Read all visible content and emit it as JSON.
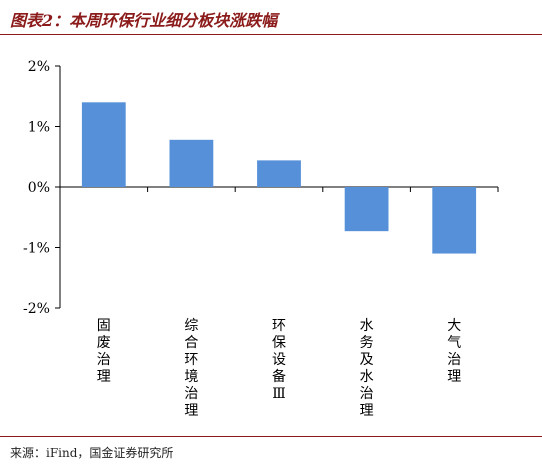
{
  "header": {
    "title": "图表2：本周环保行业细分板块涨跌幅"
  },
  "footer": {
    "source": "来源：iFind，国金证券研究所"
  },
  "colors": {
    "bar": "#5590d8",
    "title": "#8b1a1a",
    "axis": "#000000"
  },
  "chart_data": {
    "type": "bar",
    "title": "",
    "xlabel": "",
    "ylabel": "",
    "categories": [
      "固废治理",
      "综合环境治理",
      "环保设备Ⅲ",
      "水务及水治理",
      "大气治理"
    ],
    "values": [
      1.4,
      0.78,
      0.44,
      -0.73,
      -1.1
    ],
    "yticks": [
      2,
      1,
      0,
      -1,
      -2
    ],
    "ytick_labels": [
      "2%",
      "1%",
      "0%",
      "-1%",
      "-2%"
    ],
    "ylim": [
      -2,
      2
    ],
    "grid": false,
    "legend": "none"
  }
}
